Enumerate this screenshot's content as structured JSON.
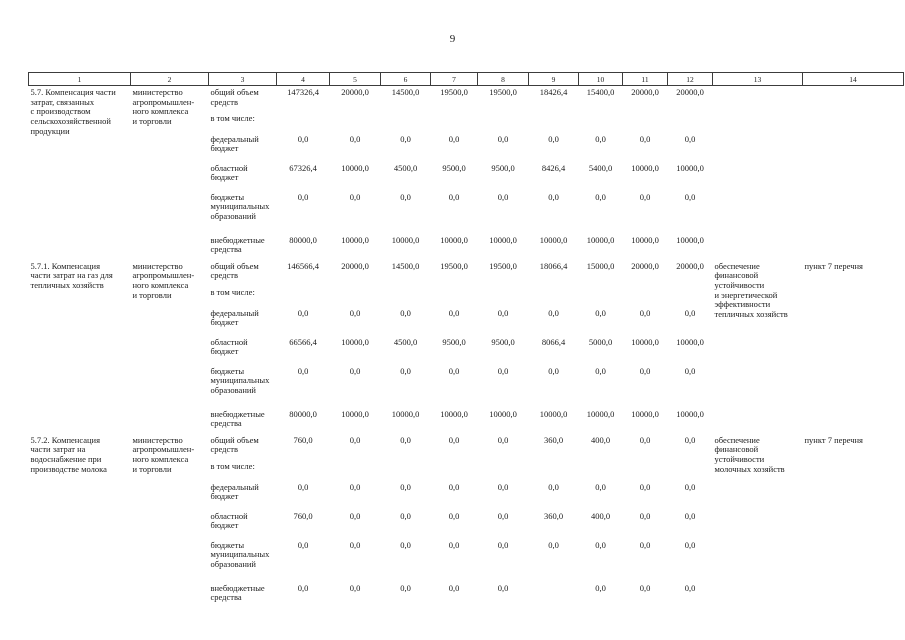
{
  "page_number": "9",
  "table": {
    "column_numbers": [
      "1",
      "2",
      "3",
      "4",
      "5",
      "6",
      "7",
      "8",
      "9",
      "10",
      "11",
      "12",
      "13",
      "14"
    ],
    "sections": [
      {
        "id": "5.7",
        "title": "5.7.  Компенсация части\nзатрат, связанных\nс производством\nсельскохозяйственной\nпродукции",
        "executor": "министерство\nагропромышлен-\nного комплекса\nи торговли",
        "rows": [
          {
            "label": "общий объем\nсредств",
            "values": [
              "147326,4",
              "20000,0",
              "14500,0",
              "19500,0",
              "19500,0",
              "18426,4",
              "15400,0",
              "20000,0",
              "20000,0"
            ]
          },
          {
            "label": "в том числе:",
            "values": [
              "",
              "",
              "",
              "",
              "",
              "",
              "",
              "",
              ""
            ]
          },
          {
            "label": "федеральный\nбюджет",
            "values": [
              "0,0",
              "0,0",
              "0,0",
              "0,0",
              "0,0",
              "0,0",
              "0,0",
              "0,0",
              "0,0"
            ]
          },
          {
            "label": "областной\nбюджет",
            "values": [
              "67326,4",
              "10000,0",
              "4500,0",
              "9500,0",
              "9500,0",
              "8426,4",
              "5400,0",
              "10000,0",
              "10000,0"
            ]
          },
          {
            "label": "бюджеты\nмуниципальных\nобразований",
            "values": [
              "0,0",
              "0,0",
              "0,0",
              "0,0",
              "0,0",
              "0,0",
              "0,0",
              "0,0",
              "0,0"
            ]
          },
          {
            "label": "внебюджетные\nсредства",
            "values": [
              "80000,0",
              "10000,0",
              "10000,0",
              "10000,0",
              "10000,0",
              "10000,0",
              "10000,0",
              "10000,0",
              "10000,0"
            ]
          }
        ],
        "expected_result": "",
        "basis": ""
      },
      {
        "id": "5.7.1",
        "title": "5.7.1. Компенсация\nчасти затрат на газ для\nтепличных хозяйств",
        "executor": "министерство\nагропромышлен-\nного комплекса\nи торговли",
        "rows": [
          {
            "label": "общий объем\nсредств",
            "values": [
              "146566,4",
              "20000,0",
              "14500,0",
              "19500,0",
              "19500,0",
              "18066,4",
              "15000,0",
              "20000,0",
              "20000,0"
            ]
          },
          {
            "label": "в том числе:",
            "values": [
              "",
              "",
              "",
              "",
              "",
              "",
              "",
              "",
              ""
            ]
          },
          {
            "label": "федеральный\nбюджет",
            "values": [
              "0,0",
              "0,0",
              "0,0",
              "0,0",
              "0,0",
              "0,0",
              "0,0",
              "0,0",
              "0,0"
            ]
          },
          {
            "label": "областной\nбюджет",
            "values": [
              "66566,4",
              "10000,0",
              "4500,0",
              "9500,0",
              "9500,0",
              "8066,4",
              "5000,0",
              "10000,0",
              "10000,0"
            ]
          },
          {
            "label": "бюджеты\nмуниципальных\nобразований",
            "values": [
              "0,0",
              "0,0",
              "0,0",
              "0,0",
              "0,0",
              "0,0",
              "0,0",
              "0,0",
              "0,0"
            ]
          },
          {
            "label": "внебюджетные\nсредства",
            "values": [
              "80000,0",
              "10000,0",
              "10000,0",
              "10000,0",
              "10000,0",
              "10000,0",
              "10000,0",
              "10000,0",
              "10000,0"
            ]
          }
        ],
        "expected_result": "обеспечение\nфинансовой\nустойчивости\nи энергетической\nэффективности\nтепличных хозяйств",
        "basis": "пункт 7 перечня"
      },
      {
        "id": "5.7.2",
        "title": "5.7.2. Компенсация\nчасти затрат на\nводоснабжение при\nпроизводстве молока",
        "executor": "министерство\nагропромышлен-\nного комплекса\nи торговли",
        "rows": [
          {
            "label": "общий объем\nсредств",
            "values": [
              "760,0",
              "0,0",
              "0,0",
              "0,0",
              "0,0",
              "360,0",
              "400,0",
              "0,0",
              "0,0"
            ]
          },
          {
            "label": "в том числе:",
            "values": [
              "",
              "",
              "",
              "",
              "",
              "",
              "",
              "",
              ""
            ]
          },
          {
            "label": "федеральный\nбюджет",
            "values": [
              "0,0",
              "0,0",
              "0,0",
              "0,0",
              "0,0",
              "0,0",
              "0,0",
              "0,0",
              "0,0"
            ]
          },
          {
            "label": "областной\nбюджет",
            "values": [
              "760,0",
              "0,0",
              "0,0",
              "0,0",
              "0,0",
              "360,0",
              "400,0",
              "0,0",
              "0,0"
            ]
          },
          {
            "label": "бюджеты\nмуниципальных\nобразований",
            "values": [
              "0,0",
              "0,0",
              "0,0",
              "0,0",
              "0,0",
              "0,0",
              "0,0",
              "0,0",
              "0,0"
            ]
          },
          {
            "label": "внебюджетные\nсредства",
            "values": [
              "0,0",
              "0,0",
              "0,0",
              "0,0",
              "0,0",
              "",
              "0,0",
              "0,0",
              "0,0"
            ]
          }
        ],
        "expected_result": "обеспечение\nфинансовой\nустойчивости\nмолочных хозяйств",
        "basis": "пункт 7 перечня"
      }
    ]
  }
}
